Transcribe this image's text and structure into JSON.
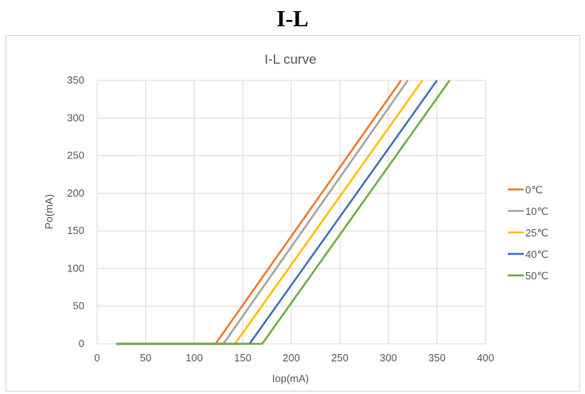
{
  "page": {
    "heading": "I-L"
  },
  "chart_data": {
    "type": "line",
    "title": "I-L curve",
    "xlabel": "Iop(mA)",
    "ylabel": "Po(mA)",
    "xlim": [
      0,
      400
    ],
    "ylim": [
      0,
      350
    ],
    "xticks": [
      0,
      50,
      100,
      150,
      200,
      250,
      300,
      350,
      400
    ],
    "yticks": [
      0,
      50,
      100,
      150,
      200,
      250,
      300,
      350
    ],
    "grid": true,
    "legend_position": "right",
    "series": [
      {
        "name": "0℃",
        "color": "#ed7d31",
        "x": [
          20,
          122,
          313
        ],
        "y": [
          0,
          0,
          350
        ]
      },
      {
        "name": "10℃",
        "color": "#a5a5a5",
        "x": [
          20,
          130,
          320
        ],
        "y": [
          0,
          0,
          350
        ]
      },
      {
        "name": "25℃",
        "color": "#ffc000",
        "x": [
          20,
          142,
          335
        ],
        "y": [
          0,
          0,
          350
        ]
      },
      {
        "name": "40℃",
        "color": "#4472c4",
        "x": [
          20,
          157,
          350
        ],
        "y": [
          0,
          0,
          350
        ]
      },
      {
        "name": "50℃",
        "color": "#70ad47",
        "x": [
          20,
          170,
          363
        ],
        "y": [
          0,
          0,
          350
        ]
      }
    ]
  }
}
